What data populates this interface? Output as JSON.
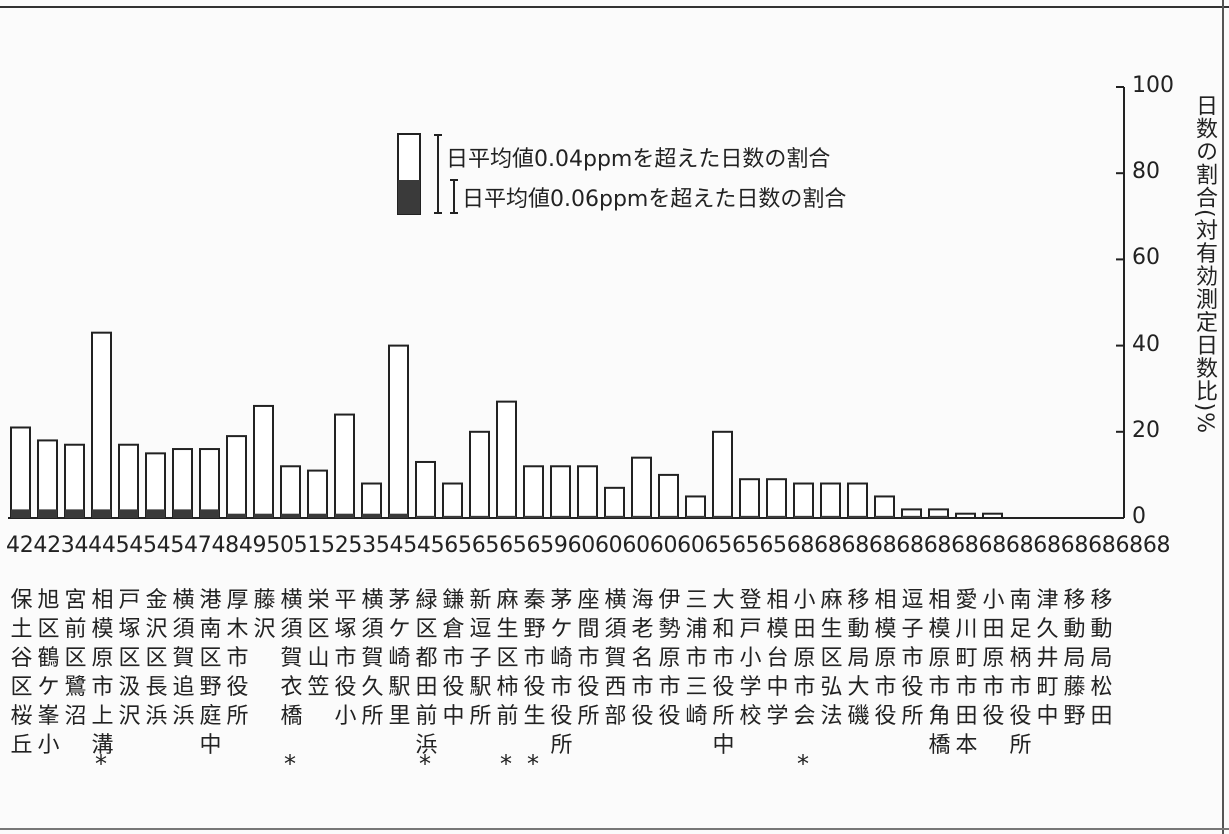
{
  "chart_data": {
    "type": "bar",
    "y_axis_label": "日数の割合(対有効測定日数比)%",
    "yticks": [
      "0",
      "20",
      "40",
      "60",
      "80",
      "100"
    ],
    "ylim": [
      0,
      100
    ],
    "y_axis_side": "right",
    "legend": {
      "over_0_04": "日平均値0.04ppmを超えた日数の割合",
      "over_0_06": "日平均値0.06ppmを超えた日数の割合"
    },
    "codes_row": "4242344454545474849505152535454565656565960606060606565656868686868686868686868686868",
    "categories": [
      "保土谷区桜丘",
      "旭区鶴ケ峯小",
      "宮前区鷺沼",
      "相模原市上溝",
      "戸塚区汲沢",
      "金沢区長浜",
      "横須賀追浜",
      "港南区野庭中",
      "厚木市役所",
      "藤沢",
      "横須賀衣橋",
      "栄区山笠",
      "平塚市役小",
      "横須賀久所",
      "茅ケ崎駅里",
      "緑区都田前浜",
      "鎌倉市役中",
      "新逗子駅所",
      "麻生区柿前",
      "秦野市役生",
      "茅ケ崎市役所",
      "座間市役所",
      "横須賀西部",
      "海老名市役",
      "伊勢原市役",
      "三浦市三崎",
      "大和市役所中",
      "登戸小学校",
      "相模台中学",
      "小田原市会",
      "麻生区弘法",
      "移動局大磯",
      "相模原市役",
      "逗子市役所",
      "相模原市角橋",
      "愛川町市田本",
      "小田原市役",
      "南足柄市役所",
      "津久井町中",
      "移動局藤野",
      "移動局松田"
    ],
    "stars": [
      "相模原市上溝",
      "横須賀衣橋",
      "緑区都田前浜",
      "麻生区柿前",
      "秦野市役生",
      "小田原市会"
    ],
    "series": [
      {
        "values": [
          21,
          18,
          17,
          43,
          17,
          15,
          16,
          16,
          19,
          26,
          12,
          11,
          24,
          8,
          40,
          13,
          8,
          20,
          27,
          12,
          12,
          12,
          7,
          14,
          10,
          5,
          20,
          9,
          9,
          8,
          8,
          8,
          5,
          2,
          2,
          1,
          1,
          0,
          0,
          0,
          0
        ]
      },
      {
        "values": [
          2,
          2,
          2,
          2,
          2,
          2,
          2,
          2,
          1,
          1,
          1,
          1,
          1,
          1,
          1,
          0.5,
          0.5,
          0.5,
          0.5,
          0.5,
          0.5,
          0.5,
          0.5,
          0.5,
          0.5,
          0.5,
          0.5,
          0.5,
          0.5,
          0.5,
          0.5,
          0.5,
          0.5,
          0.5,
          0.5,
          0,
          0,
          0,
          0,
          0,
          0
        ]
      }
    ],
    "colors": {
      "bar_fill": "#ffffff",
      "bar_stroke": "#222222",
      "dark_fill": "#3a3a3a"
    }
  },
  "star_symbol": "*"
}
